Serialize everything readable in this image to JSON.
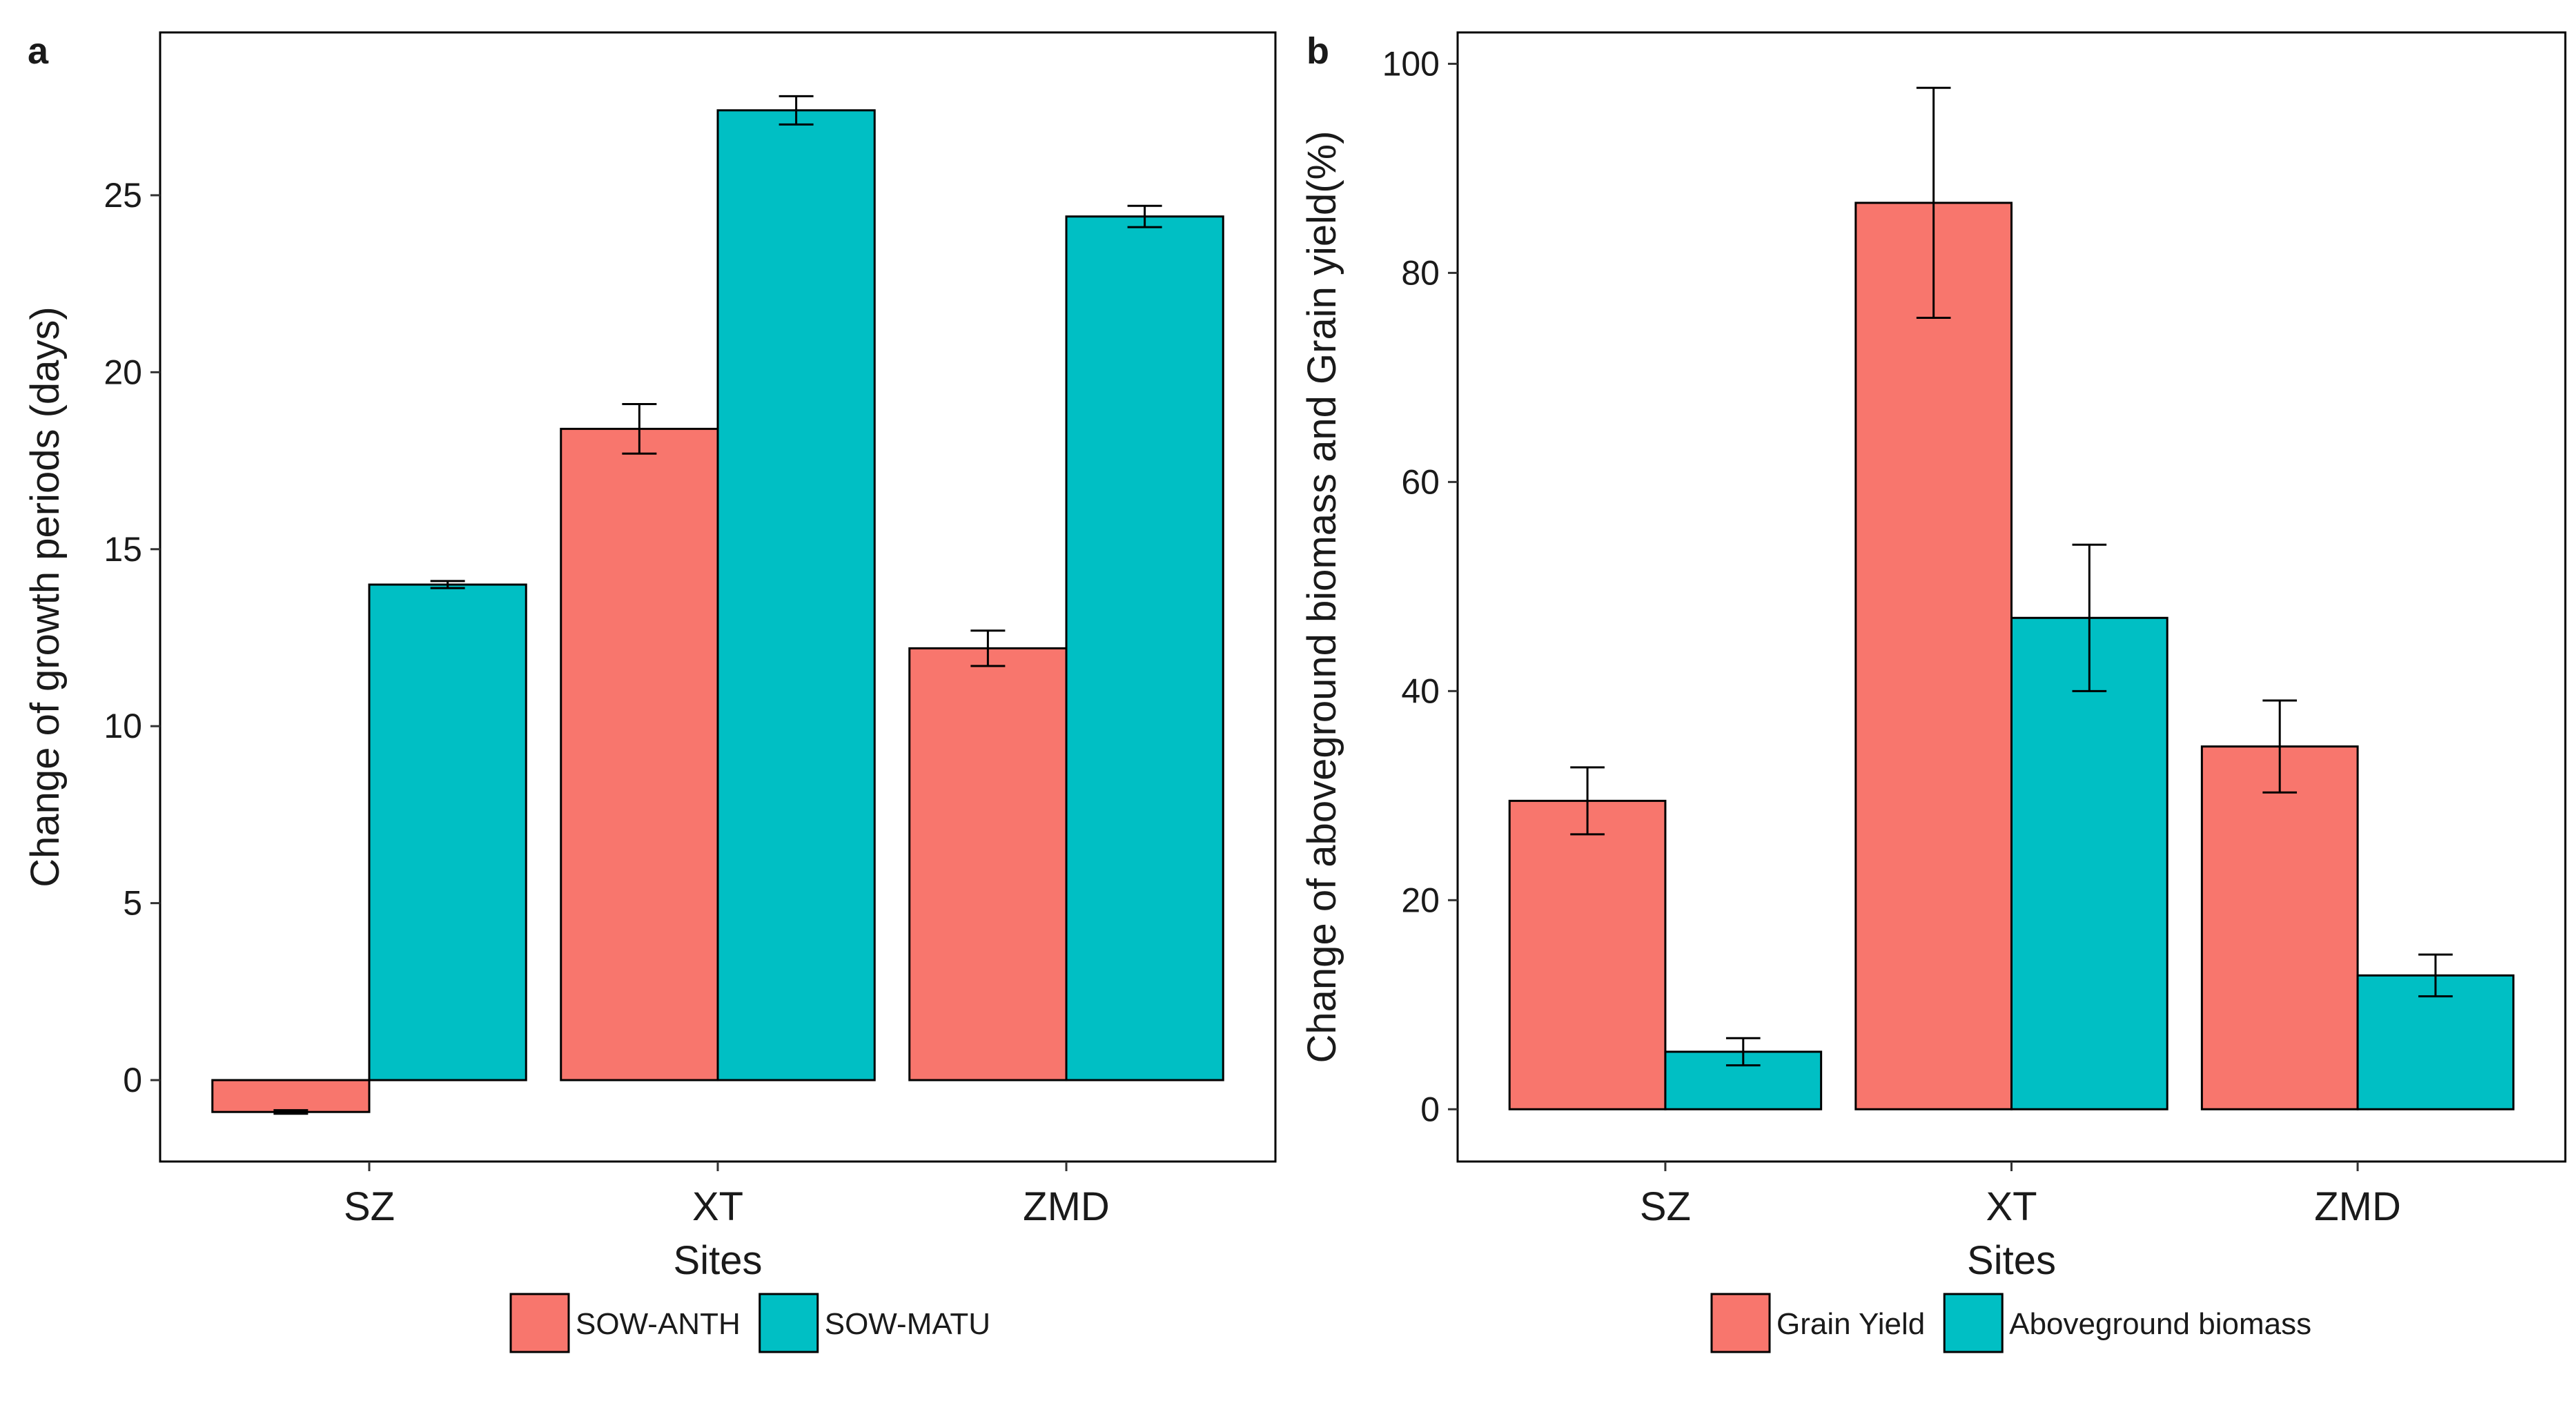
{
  "chart_data": [
    {
      "panel": "a",
      "type": "bar",
      "categories": [
        "SZ",
        "XT",
        "ZMD"
      ],
      "series": [
        {
          "name": "SOW-ANTH",
          "color": "#F8766D",
          "values": [
            -0.9,
            18.4,
            12.2
          ],
          "errors": [
            0.05,
            0.7,
            0.5
          ]
        },
        {
          "name": "SOW-MATU",
          "color": "#00BFC4",
          "values": [
            14.0,
            27.4,
            24.4
          ],
          "errors": [
            0.1,
            0.4,
            0.3
          ]
        }
      ],
      "xlabel": "Sites",
      "ylabel": "Change of growth periods (days)",
      "ylim": [
        -2.3,
        29.6
      ],
      "yticks": [
        0,
        5,
        10,
        15,
        20,
        25
      ],
      "legend_position": "bottom"
    },
    {
      "panel": "b",
      "type": "bar",
      "categories": [
        "SZ",
        "XT",
        "ZMD"
      ],
      "series": [
        {
          "name": "Grain Yield",
          "color": "#F8766D",
          "values": [
            29.5,
            86.7,
            34.7
          ],
          "errors": [
            3.2,
            11.0,
            4.4
          ]
        },
        {
          "name": "Aboveground biomass",
          "color": "#00BFC4",
          "values": [
            5.5,
            47.0,
            12.8
          ],
          "errors": [
            1.3,
            7.0,
            2.0
          ]
        }
      ],
      "xlabel": "Sites",
      "ylabel": "Change of aboveground biomass and Grain yield(%)",
      "ylim": [
        -5.0,
        103.0
      ],
      "yticks": [
        0,
        20,
        40,
        60,
        80,
        100
      ],
      "legend_position": "bottom"
    }
  ]
}
